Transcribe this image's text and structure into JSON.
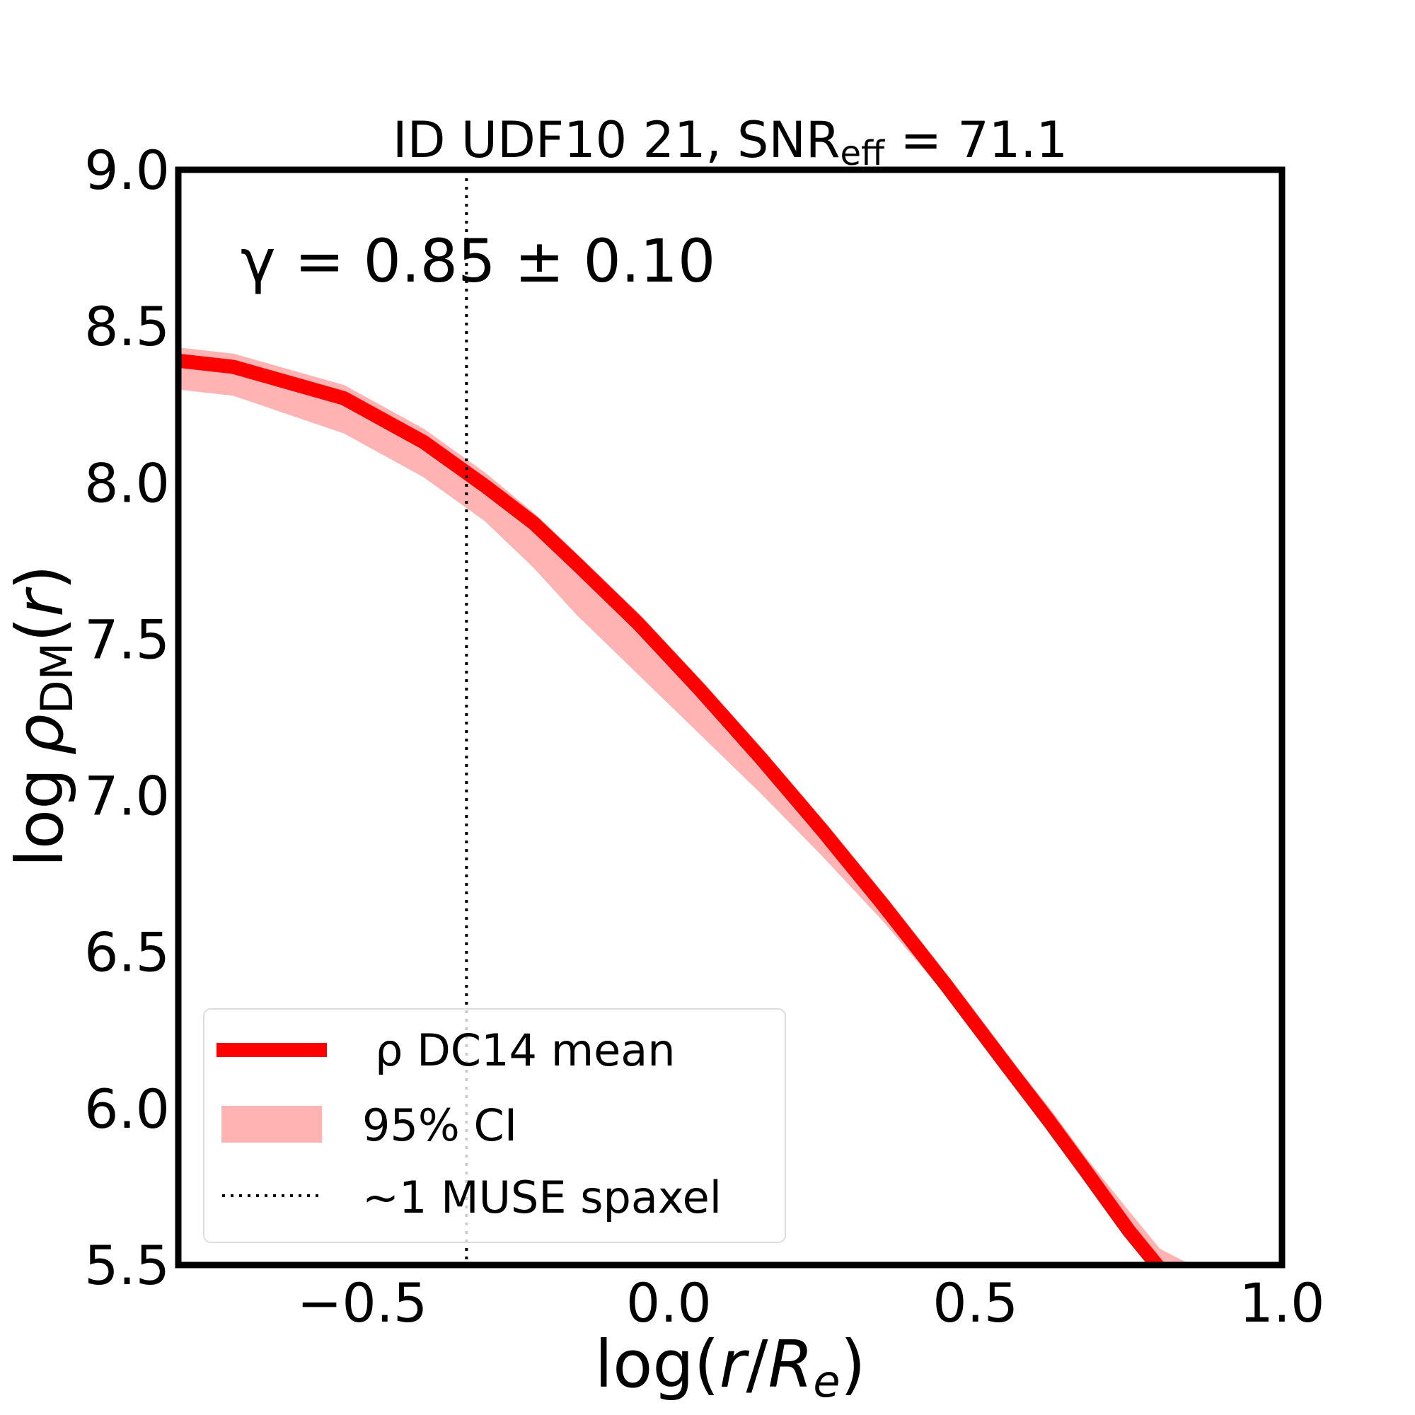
{
  "chart_data": {
    "type": "line",
    "title": "ID UDF10 21, SNR",
    "title_sub": "eff",
    "title_suffix": " = 71.1",
    "xlabel_prefix": "log(",
    "xlabel_r": "r",
    "xlabel_slash": "/",
    "xlabel_R": "R",
    "xlabel_e": "e",
    "xlabel_suffix": ")",
    "ylabel_log": "log",
    "ylabel_rho": "ρ",
    "ylabel_sub": "DM",
    "ylabel_paren_open": "(",
    "ylabel_r": "r",
    "ylabel_paren_close": ")",
    "xlim": [
      -0.8,
      1.0
    ],
    "ylim": [
      5.5,
      9.0
    ],
    "xticks": [
      -0.5,
      0.0,
      0.5,
      1.0
    ],
    "xtick_labels": [
      "−0.5",
      "0.0",
      "0.5",
      "1.0"
    ],
    "yticks": [
      5.5,
      6.0,
      6.5,
      7.0,
      7.5,
      8.0,
      8.5,
      9.0
    ],
    "ytick_labels": [
      "5.5",
      "6.0",
      "6.5",
      "7.0",
      "7.5",
      "8.0",
      "8.5",
      "9.0"
    ],
    "annotation": "γ = 0.85 ± 0.10",
    "vline_x": -0.33,
    "series": [
      {
        "name": "ρ DC14 mean",
        "color": "#ff0000",
        "x": [
          -0.8,
          -0.71,
          -0.53,
          -0.4,
          -0.3,
          -0.22,
          -0.15,
          -0.05,
          0.05,
          0.15,
          0.25,
          0.35,
          0.45,
          0.55,
          0.62,
          0.68,
          0.75,
          0.8
        ],
        "y": [
          8.39,
          8.37,
          8.27,
          8.13,
          7.99,
          7.87,
          7.74,
          7.55,
          7.34,
          7.12,
          6.89,
          6.65,
          6.4,
          6.14,
          5.96,
          5.8,
          5.61,
          5.49
        ]
      }
    ],
    "band": {
      "name": "95% CI",
      "color": "#ffb3b3",
      "x": [
        -0.8,
        -0.71,
        -0.53,
        -0.4,
        -0.3,
        -0.22,
        -0.15,
        -0.05,
        0.05,
        0.15,
        0.25,
        0.35,
        0.45,
        0.55,
        0.62,
        0.68,
        0.75,
        0.8,
        0.85
      ],
      "upper": [
        8.43,
        8.41,
        8.31,
        8.17,
        8.03,
        7.9,
        7.77,
        7.58,
        7.37,
        7.15,
        6.92,
        6.68,
        6.43,
        6.17,
        6.0,
        5.84,
        5.67,
        5.55,
        5.5
      ],
      "lower": [
        8.3,
        8.28,
        8.16,
        8.02,
        7.88,
        7.73,
        7.58,
        7.39,
        7.2,
        7.01,
        6.81,
        6.6,
        6.37,
        6.12,
        5.94,
        5.78,
        5.59,
        5.47,
        5.47
      ]
    },
    "legend": {
      "position": "lower-left",
      "entries": [
        "ρ DC14 mean",
        "95% CI",
        "~1 MUSE spaxel"
      ]
    }
  }
}
